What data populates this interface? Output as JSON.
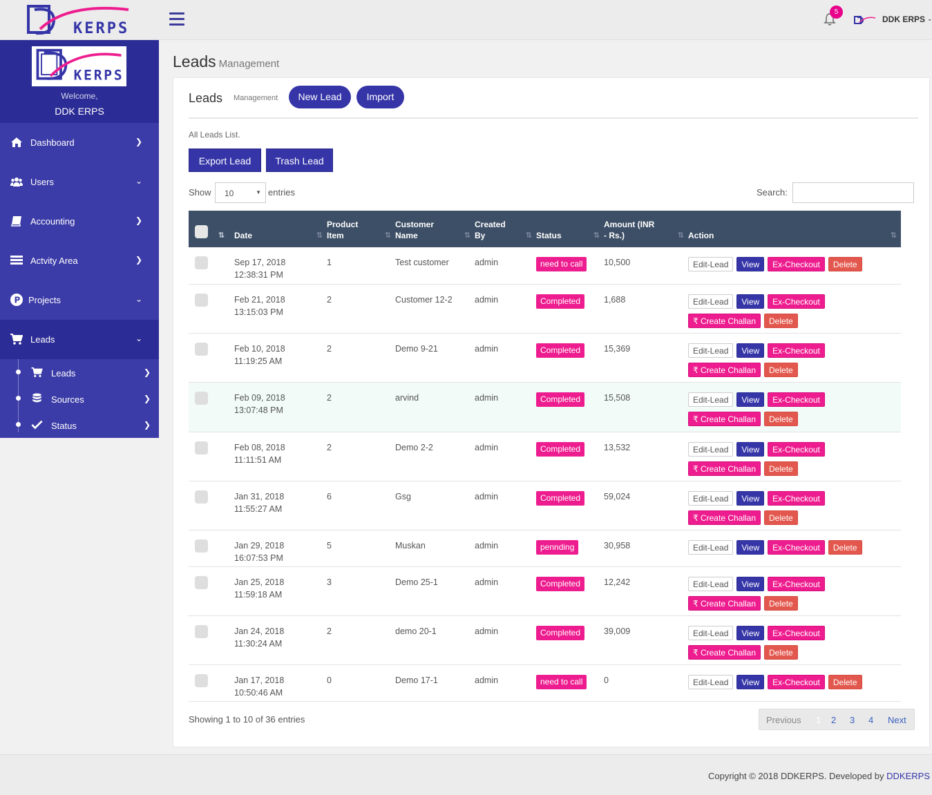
{
  "brand": {
    "name": "DDKERPS",
    "logo_text": "KERPS"
  },
  "topbar": {
    "notifications_count": "5",
    "user_name": "DDK ERPS"
  },
  "sidebar": {
    "welcome": "Welcome,",
    "profile_name": "DDK ERPS",
    "items": [
      {
        "label": "Dashboard",
        "icon": "home-icon"
      },
      {
        "label": "Users",
        "icon": "users-icon"
      },
      {
        "label": "Accounting",
        "icon": "book-icon"
      },
      {
        "label": "Actvity Area",
        "icon": "list-icon"
      },
      {
        "label": "Projects",
        "icon": "p-circle-icon"
      },
      {
        "label": "Leads",
        "icon": "cart-icon"
      }
    ],
    "sub_items": [
      {
        "label": "Leads",
        "icon": "cart-icon"
      },
      {
        "label": "Sources",
        "icon": "database-icon"
      },
      {
        "label": "Status",
        "icon": "check-icon"
      }
    ]
  },
  "page": {
    "title": "Leads",
    "subtitle": "Management"
  },
  "panel": {
    "title": "Leads",
    "subtitle": "Management",
    "new_lead": "New Lead",
    "import": "Import",
    "list_caption": "All Leads List.",
    "export_lead": "Export Lead",
    "trash_lead": "Trash Lead",
    "show_label": "Show",
    "show_value": "10",
    "entries_label": "entries",
    "search_label": "Search:"
  },
  "table": {
    "headers": {
      "date": "Date",
      "product_item_1": "Product",
      "product_item_2": "Item",
      "customer_name_1": "Customer",
      "customer_name_2": "Name",
      "created_by_1": "Created",
      "created_by_2": "By",
      "status": "Status",
      "amount_1": "Amount (INR",
      "amount_2": "- Rs.)",
      "action": "Action"
    },
    "actions": {
      "edit": "Edit-Lead",
      "view": "View",
      "checkout": "Ex-Checkout",
      "challan": "₹ Create Challan",
      "delete": "Delete"
    },
    "rows": [
      {
        "date": "Sep 17, 2018",
        "time": "12:38:31 PM",
        "item": "1",
        "customer": "Test customer",
        "created_by": "admin",
        "status": "need to call",
        "amount": "10,500"
      },
      {
        "date": "Feb 21, 2018",
        "time": "13:15:03 PM",
        "item": "2",
        "customer": "Customer 12-2",
        "created_by": "admin",
        "status": "Completed",
        "amount": "1,688"
      },
      {
        "date": "Feb 10, 2018",
        "time": "11:19:25 AM",
        "item": "2",
        "customer": "Demo 9-21",
        "created_by": "admin",
        "status": "Completed",
        "amount": "15,369"
      },
      {
        "date": "Feb 09, 2018",
        "time": "13:07:48 PM",
        "item": "2",
        "customer": "arvind",
        "created_by": "admin",
        "status": "Completed",
        "amount": "15,508"
      },
      {
        "date": "Feb 08, 2018",
        "time": "11:11:51 AM",
        "item": "2",
        "customer": "Demo 2-2",
        "created_by": "admin",
        "status": "Completed",
        "amount": "13,532"
      },
      {
        "date": "Jan 31, 2018",
        "time": "11:55:27 AM",
        "item": "6",
        "customer": "Gsg",
        "created_by": "admin",
        "status": "Completed",
        "amount": "59,024"
      },
      {
        "date": "Jan 29, 2018",
        "time": "16:07:53 PM",
        "item": "5",
        "customer": "Muskan",
        "created_by": "admin",
        "status": "pennding",
        "amount": "30,958"
      },
      {
        "date": "Jan 25, 2018",
        "time": "11:59:18 AM",
        "item": "3",
        "customer": "Demo 25-1",
        "created_by": "admin",
        "status": "Completed",
        "amount": "12,242"
      },
      {
        "date": "Jan 24, 2018",
        "time": "11:30:24 AM",
        "item": "2",
        "customer": "demo 20-1",
        "created_by": "admin",
        "status": "Completed",
        "amount": "39,009"
      },
      {
        "date": "Jan 17, 2018",
        "time": "10:50:46 AM",
        "item": "0",
        "customer": "Demo 17-1",
        "created_by": "admin",
        "status": "need to call",
        "amount": "0"
      }
    ]
  },
  "pagination": {
    "info": "Showing 1 to 10 of 36 entries",
    "previous": "Previous",
    "pages": [
      "1",
      "2",
      "3",
      "4"
    ],
    "next": "Next"
  },
  "footer": {
    "text": "Copyright © 2018 DDKERPS. Developed by",
    "link": "DDKERPS"
  },
  "colors": {
    "primary": "#3535a8",
    "accent": "#ee1d8f",
    "danger": "#e3584e",
    "header": "#3d4f66"
  }
}
